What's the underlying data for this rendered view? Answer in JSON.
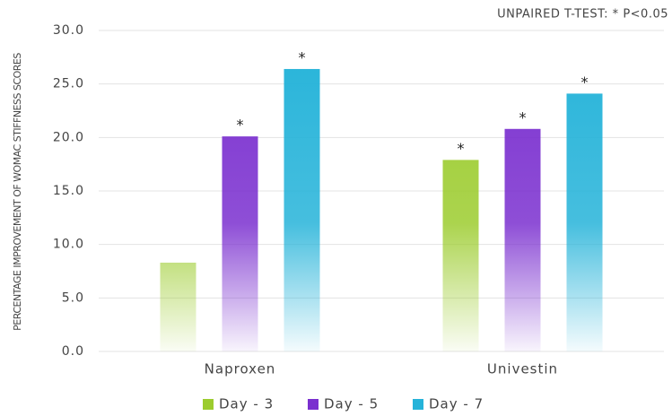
{
  "chart_data": {
    "type": "bar",
    "annotation": "UNPAIRED T-TEST: * P<0.05",
    "y_label": "PERCENTAGE IMPROVEMENT OF WOMAC STIFFNESS SCORES",
    "categories": [
      "Naproxen",
      "Univestin"
    ],
    "series": [
      {
        "name": "Day - 3",
        "color": "#9ccc2e",
        "values": [
          8.3,
          17.9
        ],
        "markers": [
          null,
          "*"
        ]
      },
      {
        "name": "Day - 5",
        "color": "#7a2fcf",
        "values": [
          20.1,
          20.8
        ],
        "markers": [
          "*",
          "*"
        ]
      },
      {
        "name": "Day - 7",
        "color": "#25b3d9",
        "values": [
          26.4,
          24.1
        ],
        "markers": [
          "*",
          "*"
        ]
      }
    ],
    "ylim": [
      0,
      30
    ],
    "yticks": [
      {
        "value": 0,
        "label": "0.0"
      },
      {
        "value": 5,
        "label": "5.0"
      },
      {
        "value": 10,
        "label": "10.0"
      },
      {
        "value": 15,
        "label": "15.0"
      },
      {
        "value": 20,
        "label": "20.0"
      },
      {
        "value": 25,
        "label": "25.0"
      },
      {
        "value": 30,
        "label": "30.0"
      }
    ],
    "grid": true,
    "legend": "bottom"
  }
}
